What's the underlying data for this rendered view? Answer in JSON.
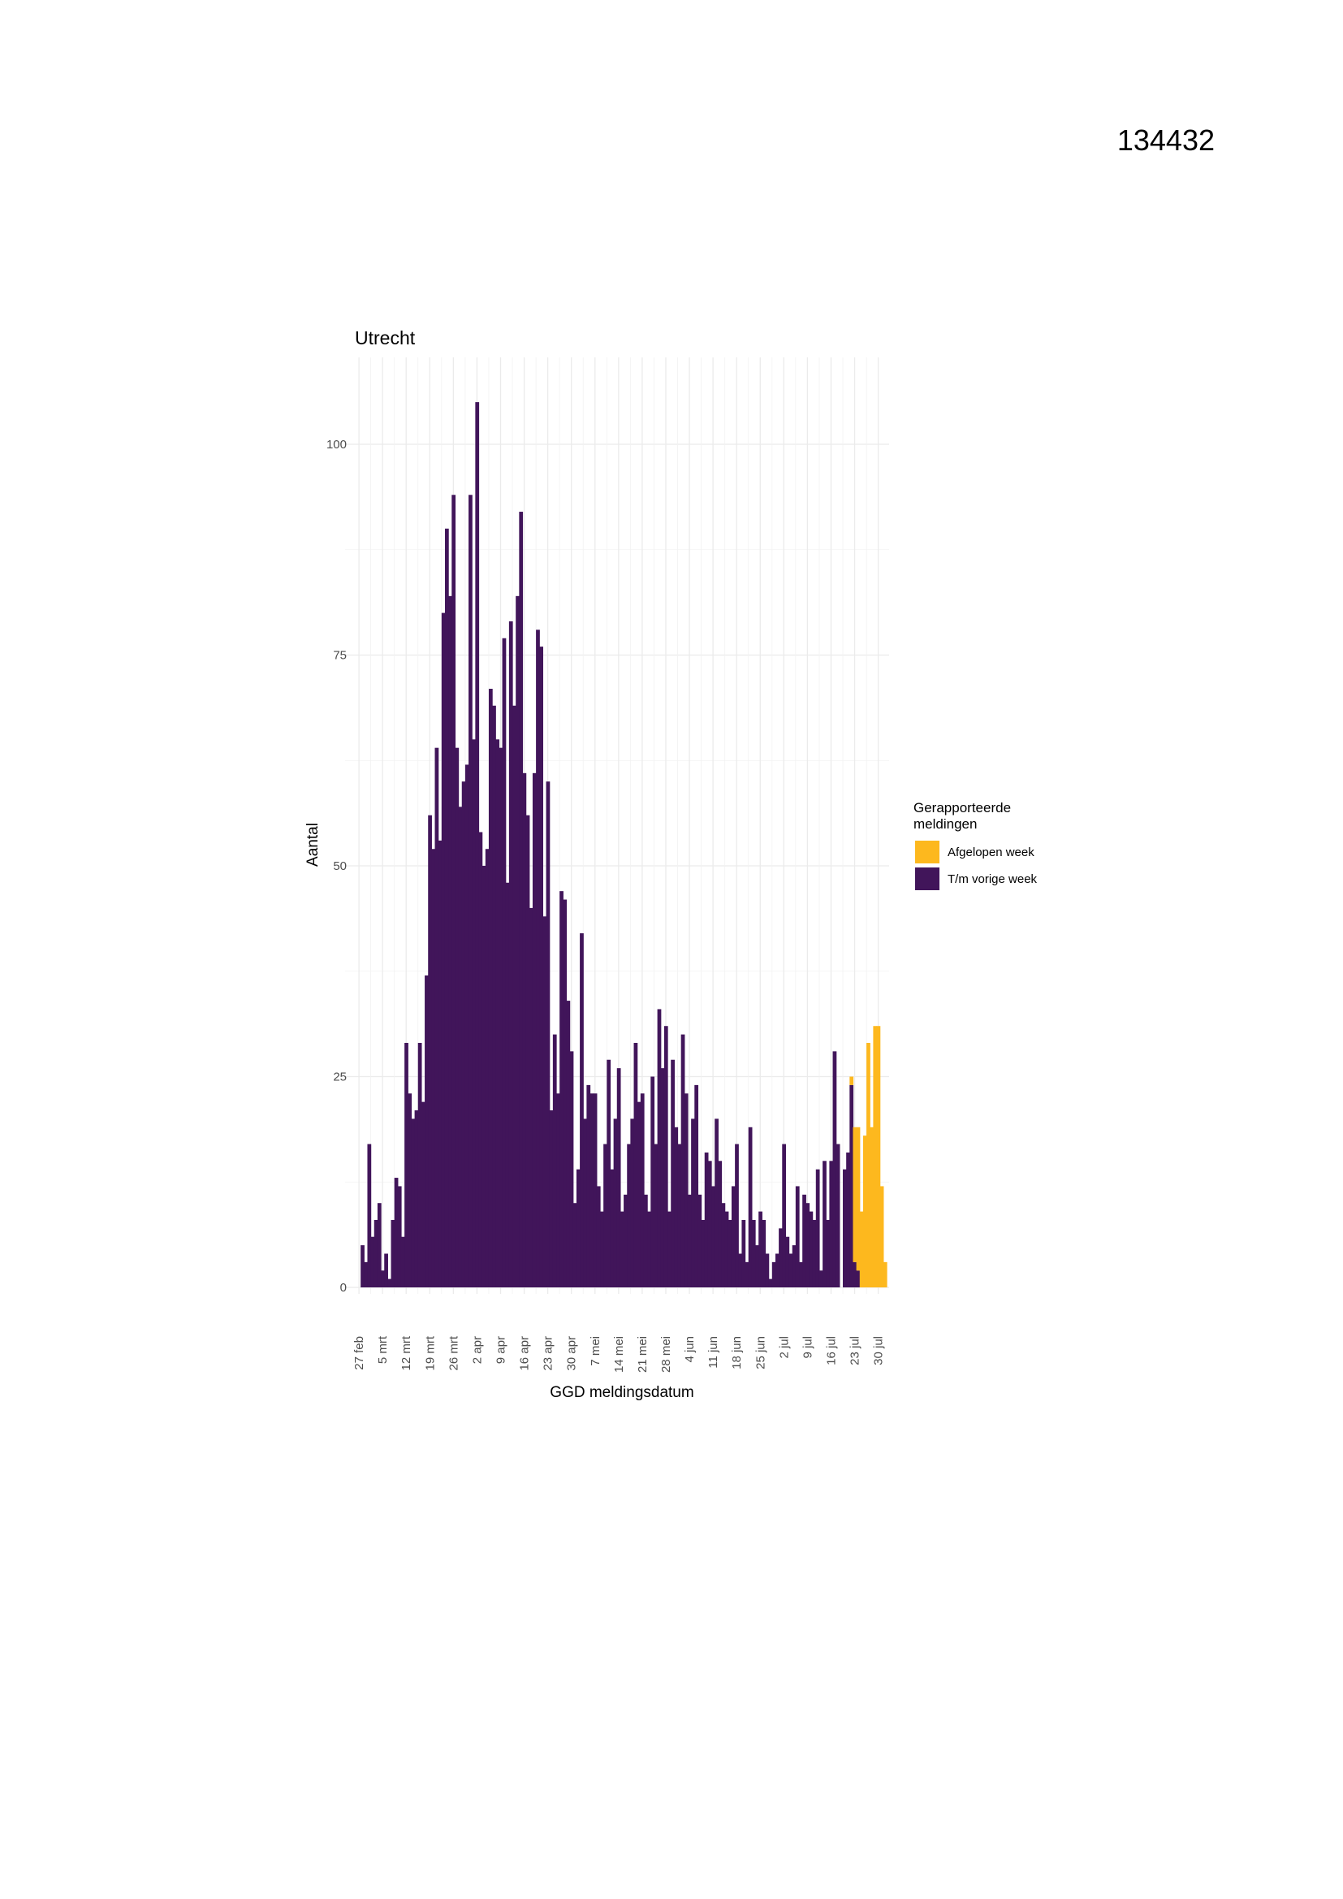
{
  "document": {
    "number": "134432"
  },
  "chart_data": {
    "type": "bar",
    "stacked": true,
    "title": "Utrecht",
    "xlabel": "GGD meldingsdatum",
    "ylabel": "Aantal",
    "ylim": [
      0,
      108
    ],
    "y_ticks": [
      0,
      25,
      50,
      75,
      100
    ],
    "grid": true,
    "x_ticks": [
      "27 feb",
      "5 mrt",
      "12 mrt",
      "19 mrt",
      "26 mrt",
      "2 apr",
      "9 apr",
      "16 apr",
      "23 apr",
      "30 apr",
      "7 mei",
      "14 mei",
      "21 mei",
      "28 mei",
      "4 jun",
      "11 jun",
      "18 jun",
      "25 jun",
      "2 jul",
      "9 jul",
      "16 jul",
      "23 jul",
      "30 jul"
    ],
    "legend": {
      "title": "Gerapporteerde meldingen",
      "placement": "right",
      "entries": [
        {
          "label": "Afgelopen week",
          "color": "#FDB81E"
        },
        {
          "label": "T/m vorige week",
          "color": "#41155A"
        }
      ]
    },
    "first_date": "27 feb",
    "series": [
      {
        "name": "T/m vorige week",
        "color": "#41155A",
        "values": [
          0,
          5,
          3,
          17,
          6,
          8,
          10,
          2,
          4,
          1,
          8,
          13,
          12,
          6,
          29,
          23,
          20,
          21,
          29,
          22,
          37,
          56,
          52,
          64,
          53,
          80,
          90,
          82,
          94,
          64,
          57,
          60,
          62,
          94,
          65,
          105,
          54,
          50,
          52,
          71,
          69,
          65,
          64,
          77,
          48,
          79,
          69,
          82,
          92,
          61,
          56,
          45,
          61,
          78,
          76,
          44,
          60,
          21,
          30,
          23,
          47,
          46,
          34,
          28,
          10,
          14,
          42,
          20,
          24,
          23,
          23,
          12,
          9,
          17,
          27,
          14,
          20,
          26,
          9,
          11,
          17,
          20,
          29,
          22,
          23,
          11,
          9,
          25,
          17,
          33,
          26,
          31,
          9,
          27,
          19,
          17,
          30,
          23,
          11,
          20,
          24,
          11,
          8,
          16,
          15,
          12,
          20,
          15,
          10,
          9,
          8,
          12,
          17,
          4,
          8,
          3,
          19,
          8,
          5,
          9,
          8,
          4,
          1,
          3,
          4,
          7,
          17,
          6,
          4,
          5,
          12,
          3,
          11,
          10,
          9,
          8,
          14,
          2,
          15,
          8,
          15,
          28,
          17,
          0,
          14,
          16,
          24,
          3,
          2,
          0,
          0,
          0,
          0,
          0,
          0,
          0,
          0
        ],
        "last_week_values": [
          0,
          0,
          0,
          0,
          0,
          0,
          0,
          0,
          0,
          0,
          0,
          0,
          0,
          0,
          0,
          0,
          0,
          0,
          0,
          0,
          0,
          0,
          0,
          0,
          0,
          0,
          0,
          0,
          0,
          0,
          0,
          0,
          0,
          0,
          0,
          0,
          0,
          0,
          0,
          0,
          0,
          0,
          0,
          0,
          0,
          0,
          0,
          0,
          0,
          0,
          0,
          0,
          0,
          0,
          0,
          0,
          0,
          0,
          0,
          0,
          0,
          0,
          0,
          0,
          0,
          0,
          0,
          0,
          0,
          0,
          0,
          0,
          0,
          0,
          0,
          0,
          0,
          0,
          0,
          0,
          0,
          0,
          0,
          0,
          0,
          0,
          0,
          0,
          0,
          0,
          0,
          0,
          0,
          0,
          0,
          0,
          0,
          0,
          0,
          0,
          0,
          0,
          0,
          0,
          0,
          0,
          0,
          0,
          0,
          0,
          0,
          0,
          0,
          0,
          0,
          0,
          0,
          0,
          0,
          0,
          0,
          0,
          0,
          0,
          0,
          0,
          0,
          0,
          0,
          0,
          0,
          0,
          0,
          0,
          0,
          0,
          0,
          0,
          0,
          0,
          0,
          0,
          0,
          0,
          0,
          0,
          1,
          16,
          17,
          9,
          18,
          29,
          19,
          31,
          31,
          12,
          3
        ]
      }
    ]
  }
}
